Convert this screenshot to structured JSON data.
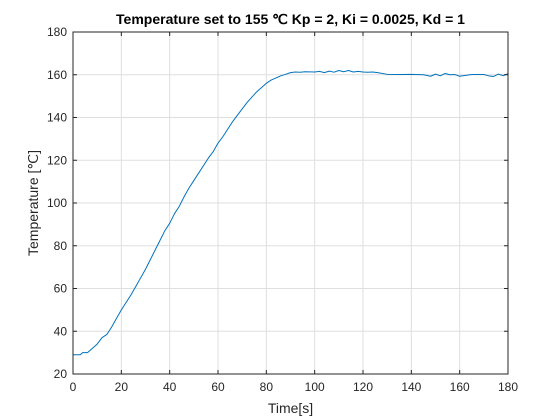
{
  "chart_data": {
    "type": "line",
    "title": "Temperature set to 155 ℃ Kp = 2, Ki = 0.0025, Kd = 1",
    "xlabel": "Time[s]",
    "ylabel": "Temperature [℃]",
    "xlim": [
      0,
      180
    ],
    "ylim": [
      20,
      180
    ],
    "xticks": [
      "0",
      "20",
      "40",
      "60",
      "80",
      "100",
      "120",
      "140",
      "160",
      "180"
    ],
    "yticks": [
      "20",
      "40",
      "60",
      "80",
      "100",
      "120",
      "140",
      "160",
      "180"
    ],
    "grid": true,
    "series": [
      {
        "color": "#0072bd",
        "x": [
          0,
          3,
          4,
          6,
          7,
          10,
          12,
          14,
          16,
          18,
          20,
          22,
          24,
          26,
          28,
          30,
          32,
          34,
          36,
          38,
          40,
          42,
          44,
          46,
          48,
          50,
          52,
          54,
          56,
          58,
          60,
          62,
          64,
          66,
          68,
          70,
          72,
          74,
          76,
          78,
          80,
          82,
          84,
          86,
          88,
          90,
          92,
          94,
          96,
          100,
          102,
          104,
          106,
          108,
          110,
          112,
          114,
          116,
          118,
          120,
          122,
          124,
          126,
          130,
          135,
          140,
          145,
          148,
          150,
          152,
          154,
          156,
          158,
          160,
          165,
          170,
          172,
          174,
          176,
          178,
          180
        ],
        "y": [
          29,
          29,
          30,
          30,
          31,
          34,
          37,
          38.5,
          42,
          46,
          50,
          53.5,
          57,
          61,
          65,
          69,
          73.5,
          78,
          82.5,
          87,
          90.5,
          95,
          98.5,
          103,
          107,
          110.5,
          114,
          117.5,
          121,
          124,
          128,
          131,
          134.5,
          138,
          141,
          144,
          147,
          149.5,
          152,
          154,
          156,
          157.5,
          158.5,
          159.5,
          160.2,
          161,
          161.3,
          161.2,
          161.4,
          161.3,
          161.6,
          161,
          161.7,
          161.2,
          162,
          161.4,
          162,
          161.3,
          161.6,
          161.3,
          161.2,
          161.3,
          161,
          160.2,
          160.1,
          160.2,
          160,
          159.3,
          160.3,
          159.5,
          160.6,
          160,
          160.1,
          159.3,
          160.1,
          160.1,
          159.5,
          159.2,
          160.3,
          159.6,
          160.5
        ]
      }
    ]
  }
}
